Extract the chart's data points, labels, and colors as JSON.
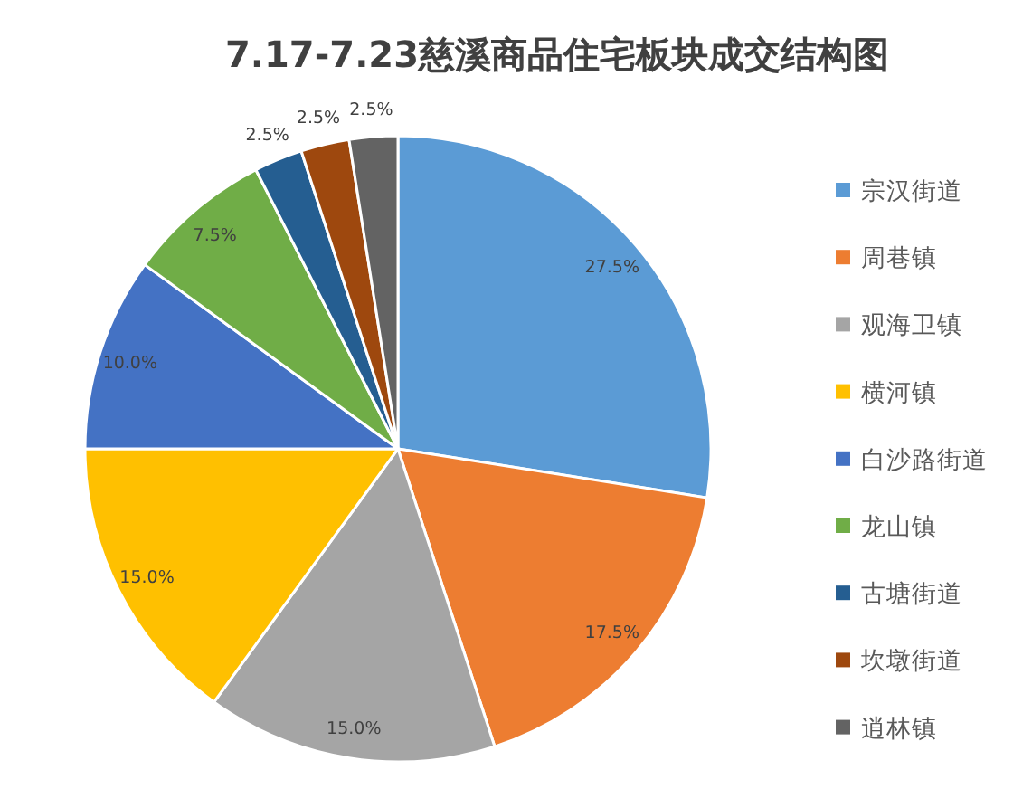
{
  "chart_data": {
    "type": "pie",
    "title": "7.17-7.23慈溪商品住宅板块成交结构图",
    "categories": [
      "宗汉街道",
      "周巷镇",
      "观海卫镇",
      "横河镇",
      "白沙路街道",
      "龙山镇",
      "古塘街道",
      "坎墩街道",
      "逍林镇"
    ],
    "values": [
      27.5,
      17.5,
      15,
      15,
      10,
      7.5,
      2.5,
      2.5,
      2.5
    ],
    "colors": [
      "#5b9bd5",
      "#ed7d31",
      "#a5a5a5",
      "#ffc000",
      "#4472c4",
      "#70ad47",
      "#255e91",
      "#9e480e",
      "#636363"
    ],
    "value_labels": [
      "27.5%",
      "17.5%",
      "15.0%",
      "15.0%",
      "10.0%",
      "7.5%",
      "2.5%",
      "2.5%",
      "2.5%"
    ],
    "legend": "right"
  }
}
